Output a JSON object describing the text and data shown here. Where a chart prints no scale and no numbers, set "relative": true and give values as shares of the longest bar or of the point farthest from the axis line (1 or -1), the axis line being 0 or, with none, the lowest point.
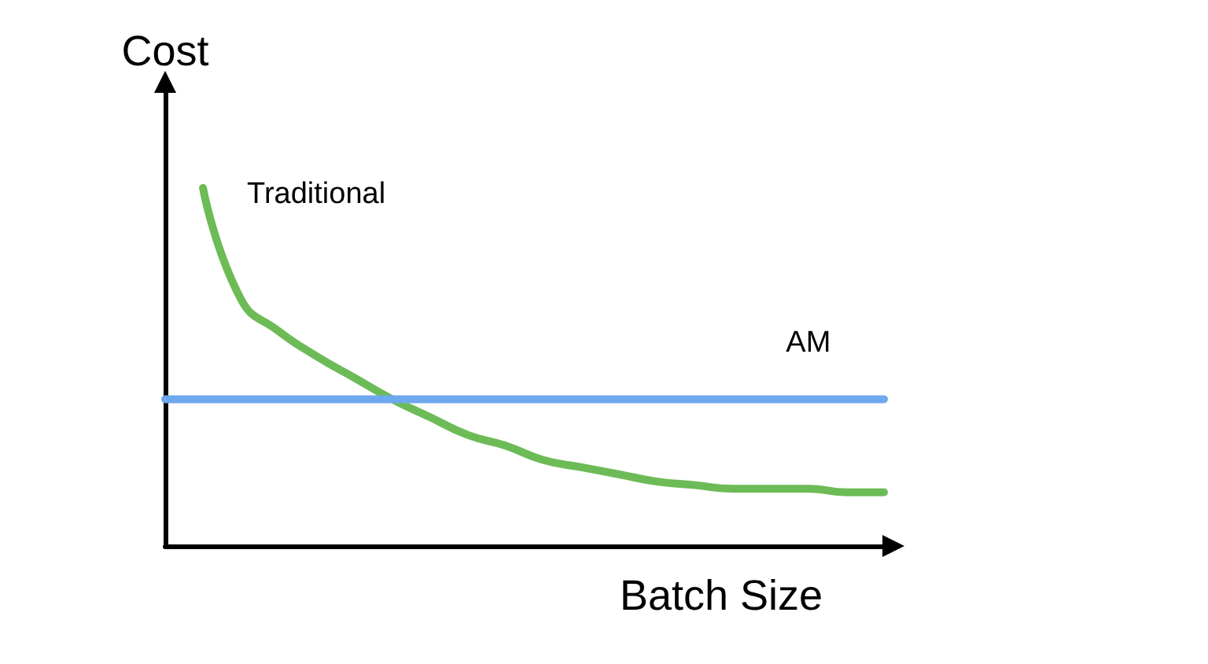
{
  "chart_data": {
    "type": "line",
    "relative": true,
    "xlabel": "Batch Size",
    "ylabel": "Cost",
    "categories": [
      null,
      null,
      null,
      null,
      null,
      null,
      null,
      null,
      null,
      null,
      null,
      null,
      null,
      null,
      null,
      null,
      null,
      null,
      null,
      null
    ],
    "series": [
      {
        "name": "Traditional",
        "color": "#6dbb57",
        "values": [
          null,
          1.0,
          0.69,
          0.6,
          0.53,
          0.47,
          0.41,
          0.36,
          0.31,
          0.28,
          0.24,
          0.22,
          0.2,
          0.18,
          0.17,
          0.16,
          0.16,
          0.16,
          0.15,
          0.15
        ]
      },
      {
        "name": "AM",
        "color": "#6ea8ee",
        "values": [
          0.41,
          0.41,
          0.41,
          0.41,
          0.41,
          0.41,
          0.41,
          0.41,
          0.41,
          0.41,
          0.41,
          0.41,
          0.41,
          0.41,
          0.41,
          0.41,
          0.41,
          0.41,
          0.41,
          0.41
        ]
      }
    ],
    "legend": false,
    "grid": false,
    "marker": "none"
  }
}
